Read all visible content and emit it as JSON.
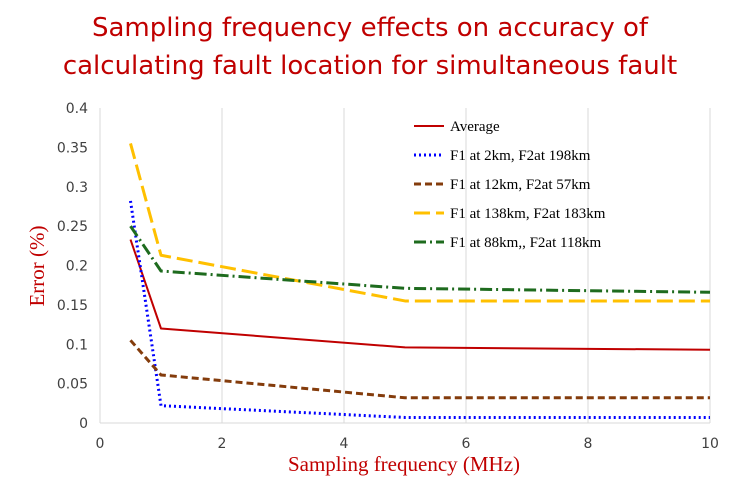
{
  "chart_data": {
    "type": "line",
    "title_lines": [
      "Sampling frequency effects on accuracy of",
      "calculating fault location for simultaneous fault"
    ],
    "xlabel": "Sampling frequency   (MHz)",
    "ylabel": "Error (%)",
    "xlim": [
      0,
      10
    ],
    "ylim": [
      0,
      0.4
    ],
    "x_ticks": [
      "0",
      "2",
      "4",
      "6",
      "8",
      "10"
    ],
    "y_ticks": [
      "0",
      "0.05",
      "0.1",
      "0.15",
      "0.2",
      "0.25",
      "0.3",
      "0.35",
      "0.4"
    ],
    "grid": "vertical",
    "legend_position": "top-right",
    "series": [
      {
        "name": "Average",
        "color": "#c00000",
        "dash": "solid",
        "x": [
          0.5,
          1,
          5,
          10
        ],
        "values": [
          0.233,
          0.12,
          0.096,
          0.093
        ]
      },
      {
        "name": "F1 at 2km, F2at 198km",
        "color": "#0000ff",
        "dash": "dot",
        "x": [
          0.5,
          1,
          5,
          10
        ],
        "values": [
          0.282,
          0.022,
          0.007,
          0.007
        ]
      },
      {
        "name": "F1 at 12km, F2at 57km",
        "color": "#843c0c",
        "dash": "dash",
        "x": [
          0.5,
          1,
          5,
          10
        ],
        "values": [
          0.105,
          0.061,
          0.032,
          0.032
        ]
      },
      {
        "name": "F1 at 138km, F2at 183km",
        "color": "#ffc000",
        "dash": "longdash",
        "x": [
          0.5,
          1,
          5,
          10
        ],
        "values": [
          0.355,
          0.213,
          0.155,
          0.155
        ]
      },
      {
        "name": "F1 at 88km,, F2at 118km",
        "color": "#1e6b1e",
        "dash": "dashdot",
        "x": [
          0.5,
          1,
          5,
          10
        ],
        "values": [
          0.25,
          0.193,
          0.171,
          0.166
        ]
      }
    ]
  }
}
